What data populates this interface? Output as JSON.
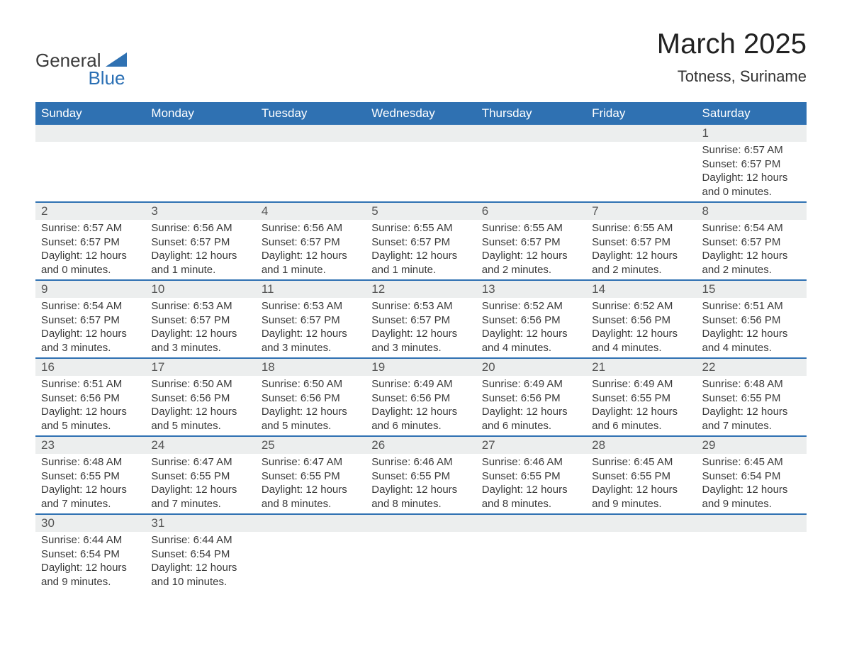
{
  "brand": {
    "part1": "General",
    "part2": "Blue",
    "triangle_color": "#2f71b2"
  },
  "title": "March 2025",
  "location": "Totness, Suriname",
  "header_bg": "#2f71b2",
  "header_fg": "#ffffff",
  "daynum_bg": "#eceeee",
  "row_divider_color": "#2f71b2",
  "weekdays": [
    "Sunday",
    "Monday",
    "Tuesday",
    "Wednesday",
    "Thursday",
    "Friday",
    "Saturday"
  ],
  "weeks": [
    [
      null,
      null,
      null,
      null,
      null,
      null,
      {
        "n": "1",
        "sunrise": "6:57 AM",
        "sunset": "6:57 PM",
        "daylight": "12 hours and 0 minutes."
      }
    ],
    [
      {
        "n": "2",
        "sunrise": "6:57 AM",
        "sunset": "6:57 PM",
        "daylight": "12 hours and 0 minutes."
      },
      {
        "n": "3",
        "sunrise": "6:56 AM",
        "sunset": "6:57 PM",
        "daylight": "12 hours and 1 minute."
      },
      {
        "n": "4",
        "sunrise": "6:56 AM",
        "sunset": "6:57 PM",
        "daylight": "12 hours and 1 minute."
      },
      {
        "n": "5",
        "sunrise": "6:55 AM",
        "sunset": "6:57 PM",
        "daylight": "12 hours and 1 minute."
      },
      {
        "n": "6",
        "sunrise": "6:55 AM",
        "sunset": "6:57 PM",
        "daylight": "12 hours and 2 minutes."
      },
      {
        "n": "7",
        "sunrise": "6:55 AM",
        "sunset": "6:57 PM",
        "daylight": "12 hours and 2 minutes."
      },
      {
        "n": "8",
        "sunrise": "6:54 AM",
        "sunset": "6:57 PM",
        "daylight": "12 hours and 2 minutes."
      }
    ],
    [
      {
        "n": "9",
        "sunrise": "6:54 AM",
        "sunset": "6:57 PM",
        "daylight": "12 hours and 3 minutes."
      },
      {
        "n": "10",
        "sunrise": "6:53 AM",
        "sunset": "6:57 PM",
        "daylight": "12 hours and 3 minutes."
      },
      {
        "n": "11",
        "sunrise": "6:53 AM",
        "sunset": "6:57 PM",
        "daylight": "12 hours and 3 minutes."
      },
      {
        "n": "12",
        "sunrise": "6:53 AM",
        "sunset": "6:57 PM",
        "daylight": "12 hours and 3 minutes."
      },
      {
        "n": "13",
        "sunrise": "6:52 AM",
        "sunset": "6:56 PM",
        "daylight": "12 hours and 4 minutes."
      },
      {
        "n": "14",
        "sunrise": "6:52 AM",
        "sunset": "6:56 PM",
        "daylight": "12 hours and 4 minutes."
      },
      {
        "n": "15",
        "sunrise": "6:51 AM",
        "sunset": "6:56 PM",
        "daylight": "12 hours and 4 minutes."
      }
    ],
    [
      {
        "n": "16",
        "sunrise": "6:51 AM",
        "sunset": "6:56 PM",
        "daylight": "12 hours and 5 minutes."
      },
      {
        "n": "17",
        "sunrise": "6:50 AM",
        "sunset": "6:56 PM",
        "daylight": "12 hours and 5 minutes."
      },
      {
        "n": "18",
        "sunrise": "6:50 AM",
        "sunset": "6:56 PM",
        "daylight": "12 hours and 5 minutes."
      },
      {
        "n": "19",
        "sunrise": "6:49 AM",
        "sunset": "6:56 PM",
        "daylight": "12 hours and 6 minutes."
      },
      {
        "n": "20",
        "sunrise": "6:49 AM",
        "sunset": "6:56 PM",
        "daylight": "12 hours and 6 minutes."
      },
      {
        "n": "21",
        "sunrise": "6:49 AM",
        "sunset": "6:55 PM",
        "daylight": "12 hours and 6 minutes."
      },
      {
        "n": "22",
        "sunrise": "6:48 AM",
        "sunset": "6:55 PM",
        "daylight": "12 hours and 7 minutes."
      }
    ],
    [
      {
        "n": "23",
        "sunrise": "6:48 AM",
        "sunset": "6:55 PM",
        "daylight": "12 hours and 7 minutes."
      },
      {
        "n": "24",
        "sunrise": "6:47 AM",
        "sunset": "6:55 PM",
        "daylight": "12 hours and 7 minutes."
      },
      {
        "n": "25",
        "sunrise": "6:47 AM",
        "sunset": "6:55 PM",
        "daylight": "12 hours and 8 minutes."
      },
      {
        "n": "26",
        "sunrise": "6:46 AM",
        "sunset": "6:55 PM",
        "daylight": "12 hours and 8 minutes."
      },
      {
        "n": "27",
        "sunrise": "6:46 AM",
        "sunset": "6:55 PM",
        "daylight": "12 hours and 8 minutes."
      },
      {
        "n": "28",
        "sunrise": "6:45 AM",
        "sunset": "6:55 PM",
        "daylight": "12 hours and 9 minutes."
      },
      {
        "n": "29",
        "sunrise": "6:45 AM",
        "sunset": "6:54 PM",
        "daylight": "12 hours and 9 minutes."
      }
    ],
    [
      {
        "n": "30",
        "sunrise": "6:44 AM",
        "sunset": "6:54 PM",
        "daylight": "12 hours and 9 minutes."
      },
      {
        "n": "31",
        "sunrise": "6:44 AM",
        "sunset": "6:54 PM",
        "daylight": "12 hours and 10 minutes."
      },
      null,
      null,
      null,
      null,
      null
    ]
  ],
  "labels": {
    "sunrise": "Sunrise:",
    "sunset": "Sunset:",
    "daylight": "Daylight:"
  }
}
